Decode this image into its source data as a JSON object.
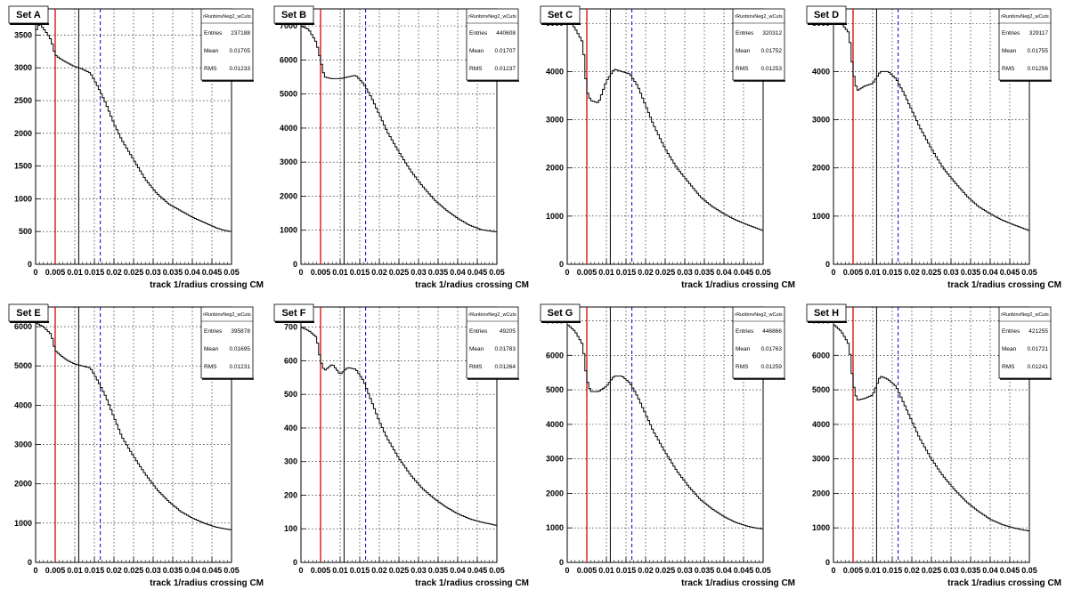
{
  "figure": {
    "xlabel": "track 1/radius crossing CM",
    "stats_labels": [
      "Entries",
      "Mean",
      "RMS"
    ],
    "x_tick_labels": [
      "0",
      "0.005",
      "0.01",
      "0.015",
      "0.02",
      "0.025",
      "0.03",
      "0.035",
      "0.04",
      "0.045",
      "0.05"
    ],
    "colors": {
      "red_line": "#dd0000",
      "blue_dashed_line": "#0000cc",
      "black_line": "#000000"
    }
  },
  "chart_data": [
    {
      "type": "histogram",
      "title": "Set A",
      "stats": {
        "name": "rRunbinvNeg2_wCuts",
        "entries": "237188",
        "mean": "0.01705",
        "rms": "0.01233"
      },
      "xlabel": "track 1/radius crossing CM",
      "xlim": [
        0,
        0.05
      ],
      "ylim": [
        0,
        3900
      ],
      "y_ticks": [
        0,
        500,
        1000,
        1500,
        2000,
        2500,
        3000,
        3500
      ],
      "grid": true,
      "vlines": [
        {
          "x": 0.005,
          "color": "red",
          "style": "solid"
        },
        {
          "x": 0.011,
          "color": "black",
          "style": "solid"
        },
        {
          "x": 0.0165,
          "color": "blue",
          "style": "dashed"
        }
      ],
      "curve": [
        [
          0,
          3550
        ],
        [
          0.001,
          3680
        ],
        [
          0.002,
          3600
        ],
        [
          0.003,
          3520
        ],
        [
          0.004,
          3420
        ],
        [
          0.005,
          3200
        ],
        [
          0.006,
          3150
        ],
        [
          0.008,
          3080
        ],
        [
          0.01,
          3020
        ],
        [
          0.012,
          2980
        ],
        [
          0.014,
          2920
        ],
        [
          0.016,
          2700
        ],
        [
          0.018,
          2450
        ],
        [
          0.02,
          2150
        ],
        [
          0.022,
          1900
        ],
        [
          0.025,
          1600
        ],
        [
          0.028,
          1300
        ],
        [
          0.031,
          1080
        ],
        [
          0.034,
          920
        ],
        [
          0.037,
          820
        ],
        [
          0.04,
          720
        ],
        [
          0.043,
          640
        ],
        [
          0.046,
          560
        ],
        [
          0.048,
          520
        ],
        [
          0.05,
          500
        ]
      ]
    },
    {
      "type": "histogram",
      "title": "Set B",
      "stats": {
        "name": "rRunbinvNeg2_wCuts",
        "entries": "440608",
        "mean": "0.01707",
        "rms": "0.01237"
      },
      "xlabel": "track 1/radius crossing CM",
      "xlim": [
        0,
        0.05
      ],
      "ylim": [
        0,
        7500
      ],
      "y_ticks": [
        0,
        1000,
        2000,
        3000,
        4000,
        5000,
        6000,
        7000
      ],
      "grid": true,
      "vlines": [
        {
          "x": 0.005,
          "color": "red",
          "style": "solid"
        },
        {
          "x": 0.011,
          "color": "black",
          "style": "solid"
        },
        {
          "x": 0.0165,
          "color": "blue",
          "style": "dashed"
        }
      ],
      "curve": [
        [
          0,
          7000
        ],
        [
          0.002,
          6900
        ],
        [
          0.004,
          6500
        ],
        [
          0.005,
          6000
        ],
        [
          0.006,
          5500
        ],
        [
          0.008,
          5450
        ],
        [
          0.01,
          5450
        ],
        [
          0.012,
          5500
        ],
        [
          0.014,
          5550
        ],
        [
          0.016,
          5300
        ],
        [
          0.018,
          4900
        ],
        [
          0.02,
          4400
        ],
        [
          0.022,
          3900
        ],
        [
          0.025,
          3300
        ],
        [
          0.028,
          2750
        ],
        [
          0.031,
          2300
        ],
        [
          0.034,
          1900
        ],
        [
          0.037,
          1600
        ],
        [
          0.04,
          1350
        ],
        [
          0.043,
          1150
        ],
        [
          0.046,
          1020
        ],
        [
          0.048,
          980
        ],
        [
          0.05,
          950
        ]
      ]
    },
    {
      "type": "histogram",
      "title": "Set C",
      "stats": {
        "name": "rRunbinvNeg2_wCuts",
        "entries": "320312",
        "mean": "0.01752",
        "rms": "0.01253"
      },
      "xlabel": "track 1/radius crossing CM",
      "xlim": [
        0,
        0.05
      ],
      "ylim": [
        0,
        5300
      ],
      "y_ticks": [
        0,
        1000,
        2000,
        3000,
        4000,
        5000
      ],
      "grid": true,
      "vlines": [
        {
          "x": 0.005,
          "color": "red",
          "style": "solid"
        },
        {
          "x": 0.011,
          "color": "black",
          "style": "solid"
        },
        {
          "x": 0.0165,
          "color": "blue",
          "style": "dashed"
        }
      ],
      "curve": [
        [
          0,
          5100
        ],
        [
          0.002,
          4900
        ],
        [
          0.004,
          4600
        ],
        [
          0.005,
          3600
        ],
        [
          0.006,
          3400
        ],
        [
          0.008,
          3350
        ],
        [
          0.01,
          3800
        ],
        [
          0.012,
          4050
        ],
        [
          0.014,
          4000
        ],
        [
          0.016,
          3950
        ],
        [
          0.018,
          3700
        ],
        [
          0.02,
          3300
        ],
        [
          0.022,
          2900
        ],
        [
          0.025,
          2400
        ],
        [
          0.028,
          2000
        ],
        [
          0.031,
          1700
        ],
        [
          0.034,
          1400
        ],
        [
          0.037,
          1200
        ],
        [
          0.04,
          1050
        ],
        [
          0.043,
          920
        ],
        [
          0.046,
          820
        ],
        [
          0.048,
          760
        ],
        [
          0.05,
          700
        ]
      ]
    },
    {
      "type": "histogram",
      "title": "Set D",
      "stats": {
        "name": "rRunbinvNeg2_wCuts",
        "entries": "329117",
        "mean": "0.01755",
        "rms": "0.01256"
      },
      "xlabel": "track 1/radius crossing CM",
      "xlim": [
        0,
        0.05
      ],
      "ylim": [
        0,
        5300
      ],
      "y_ticks": [
        0,
        1000,
        2000,
        3000,
        4000,
        5000
      ],
      "grid": true,
      "vlines": [
        {
          "x": 0.005,
          "color": "red",
          "style": "solid"
        },
        {
          "x": 0.011,
          "color": "black",
          "style": "solid"
        },
        {
          "x": 0.0165,
          "color": "blue",
          "style": "dashed"
        }
      ],
      "curve": [
        [
          0,
          5200
        ],
        [
          0.002,
          5000
        ],
        [
          0.004,
          4800
        ],
        [
          0.005,
          4000
        ],
        [
          0.006,
          3600
        ],
        [
          0.008,
          3700
        ],
        [
          0.01,
          3750
        ],
        [
          0.012,
          4000
        ],
        [
          0.014,
          4000
        ],
        [
          0.016,
          3850
        ],
        [
          0.018,
          3550
        ],
        [
          0.02,
          3200
        ],
        [
          0.022,
          2850
        ],
        [
          0.025,
          2400
        ],
        [
          0.028,
          2000
        ],
        [
          0.031,
          1700
        ],
        [
          0.034,
          1420
        ],
        [
          0.037,
          1200
        ],
        [
          0.04,
          1050
        ],
        [
          0.043,
          920
        ],
        [
          0.046,
          820
        ],
        [
          0.048,
          760
        ],
        [
          0.05,
          700
        ]
      ]
    },
    {
      "type": "histogram",
      "title": "Set E",
      "stats": {
        "name": "rRunbinvNeg2_wCuts",
        "entries": "395878",
        "mean": "0.01695",
        "rms": "0.01231"
      },
      "xlabel": "track 1/radius crossing CM",
      "xlim": [
        0,
        0.05
      ],
      "ylim": [
        0,
        6500
      ],
      "y_ticks": [
        0,
        1000,
        2000,
        3000,
        4000,
        5000,
        6000
      ],
      "grid": true,
      "vlines": [
        {
          "x": 0.005,
          "color": "red",
          "style": "solid"
        },
        {
          "x": 0.011,
          "color": "black",
          "style": "solid"
        },
        {
          "x": 0.0165,
          "color": "blue",
          "style": "dashed"
        }
      ],
      "curve": [
        [
          0,
          6100
        ],
        [
          0.002,
          6000
        ],
        [
          0.004,
          5800
        ],
        [
          0.005,
          5400
        ],
        [
          0.006,
          5300
        ],
        [
          0.008,
          5150
        ],
        [
          0.01,
          5050
        ],
        [
          0.012,
          5000
        ],
        [
          0.014,
          4950
        ],
        [
          0.016,
          4600
        ],
        [
          0.018,
          4200
        ],
        [
          0.02,
          3700
        ],
        [
          0.022,
          3200
        ],
        [
          0.025,
          2700
        ],
        [
          0.028,
          2250
        ],
        [
          0.031,
          1850
        ],
        [
          0.034,
          1550
        ],
        [
          0.037,
          1300
        ],
        [
          0.04,
          1130
        ],
        [
          0.043,
          1000
        ],
        [
          0.046,
          900
        ],
        [
          0.048,
          860
        ],
        [
          0.05,
          830
        ]
      ]
    },
    {
      "type": "histogram",
      "title": "Set F",
      "stats": {
        "name": "rRunbinvNeg2_wCuts",
        "entries": "49205",
        "mean": "0.01783",
        "rms": "0.01264"
      },
      "xlabel": "track 1/radius crossing CM",
      "xlim": [
        0,
        0.05
      ],
      "ylim": [
        0,
        760
      ],
      "y_ticks": [
        0,
        100,
        200,
        300,
        400,
        500,
        600,
        700
      ],
      "grid": true,
      "vlines": [
        {
          "x": 0.005,
          "color": "red",
          "style": "solid"
        },
        {
          "x": 0.011,
          "color": "black",
          "style": "solid"
        },
        {
          "x": 0.0165,
          "color": "blue",
          "style": "dashed"
        }
      ],
      "curve": [
        [
          0,
          700
        ],
        [
          0.002,
          690
        ],
        [
          0.004,
          670
        ],
        [
          0.005,
          600
        ],
        [
          0.006,
          570
        ],
        [
          0.008,
          590
        ],
        [
          0.01,
          560
        ],
        [
          0.012,
          580
        ],
        [
          0.014,
          575
        ],
        [
          0.016,
          540
        ],
        [
          0.018,
          480
        ],
        [
          0.02,
          420
        ],
        [
          0.022,
          370
        ],
        [
          0.025,
          310
        ],
        [
          0.028,
          260
        ],
        [
          0.031,
          220
        ],
        [
          0.034,
          190
        ],
        [
          0.037,
          165
        ],
        [
          0.04,
          145
        ],
        [
          0.043,
          130
        ],
        [
          0.046,
          120
        ],
        [
          0.048,
          115
        ],
        [
          0.05,
          110
        ]
      ]
    },
    {
      "type": "histogram",
      "title": "Set G",
      "stats": {
        "name": "rRunbinvNeg2_wCuts",
        "entries": "446866",
        "mean": "0.01763",
        "rms": "0.01259"
      },
      "xlabel": "track 1/radius crossing CM",
      "xlim": [
        0,
        0.05
      ],
      "ylim": [
        0,
        7400
      ],
      "y_ticks": [
        0,
        1000,
        2000,
        3000,
        4000,
        5000,
        6000,
        7000
      ],
      "grid": true,
      "vlines": [
        {
          "x": 0.005,
          "color": "red",
          "style": "solid"
        },
        {
          "x": 0.011,
          "color": "black",
          "style": "solid"
        },
        {
          "x": 0.0165,
          "color": "blue",
          "style": "dashed"
        }
      ],
      "curve": [
        [
          0,
          6900
        ],
        [
          0.002,
          6700
        ],
        [
          0.004,
          6300
        ],
        [
          0.005,
          5300
        ],
        [
          0.006,
          4950
        ],
        [
          0.008,
          4950
        ],
        [
          0.01,
          5100
        ],
        [
          0.012,
          5400
        ],
        [
          0.014,
          5400
        ],
        [
          0.016,
          5200
        ],
        [
          0.018,
          4800
        ],
        [
          0.02,
          4300
        ],
        [
          0.022,
          3800
        ],
        [
          0.025,
          3200
        ],
        [
          0.028,
          2650
        ],
        [
          0.031,
          2200
        ],
        [
          0.034,
          1820
        ],
        [
          0.037,
          1550
        ],
        [
          0.04,
          1330
        ],
        [
          0.043,
          1160
        ],
        [
          0.046,
          1050
        ],
        [
          0.048,
          1000
        ],
        [
          0.05,
          970
        ]
      ]
    },
    {
      "type": "histogram",
      "title": "Set H",
      "stats": {
        "name": "rRunbinvNeg2_wCuts",
        "entries": "421255",
        "mean": "0.01721",
        "rms": "0.01241"
      },
      "xlabel": "track 1/radius crossing CM",
      "xlim": [
        0,
        0.05
      ],
      "ylim": [
        0,
        7400
      ],
      "y_ticks": [
        0,
        1000,
        2000,
        3000,
        4000,
        5000,
        6000,
        7000
      ],
      "grid": true,
      "vlines": [
        {
          "x": 0.005,
          "color": "red",
          "style": "solid"
        },
        {
          "x": 0.011,
          "color": "black",
          "style": "solid"
        },
        {
          "x": 0.0165,
          "color": "blue",
          "style": "dashed"
        }
      ],
      "curve": [
        [
          0,
          6900
        ],
        [
          0.002,
          6700
        ],
        [
          0.004,
          6300
        ],
        [
          0.005,
          5200
        ],
        [
          0.006,
          4700
        ],
        [
          0.008,
          4750
        ],
        [
          0.01,
          4850
        ],
        [
          0.012,
          5400
        ],
        [
          0.014,
          5300
        ],
        [
          0.016,
          5100
        ],
        [
          0.018,
          4600
        ],
        [
          0.02,
          4100
        ],
        [
          0.022,
          3600
        ],
        [
          0.025,
          3000
        ],
        [
          0.028,
          2500
        ],
        [
          0.031,
          2100
        ],
        [
          0.034,
          1750
        ],
        [
          0.037,
          1480
        ],
        [
          0.04,
          1250
        ],
        [
          0.043,
          1100
        ],
        [
          0.046,
          1000
        ],
        [
          0.048,
          950
        ],
        [
          0.05,
          910
        ]
      ]
    }
  ]
}
